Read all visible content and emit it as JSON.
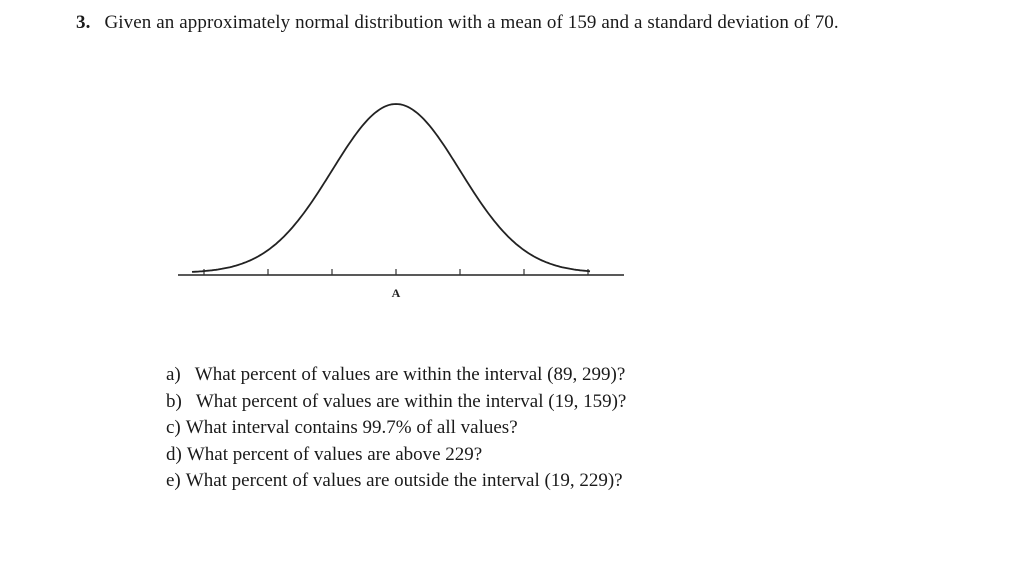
{
  "problem": {
    "number": "3.",
    "statement": "Given an approximately normal distribution with a mean of 159 and a standard deviation of 70."
  },
  "figure": {
    "type": "normal-curve",
    "center_label": "A",
    "tick_count": 7
  },
  "questions": [
    {
      "letter": "a)",
      "text": "What percent of values are within the interval (89, 299)?"
    },
    {
      "letter": "b)",
      "text": "What percent of values are within the interval (19, 159)?"
    },
    {
      "letter": "c)",
      "text": "What interval contains 99.7% of all values?"
    },
    {
      "letter": "d)",
      "text": "What percent of values are above 229?"
    },
    {
      "letter": "e)",
      "text": "What percent of values are outside the interval (19, 229)?"
    }
  ]
}
